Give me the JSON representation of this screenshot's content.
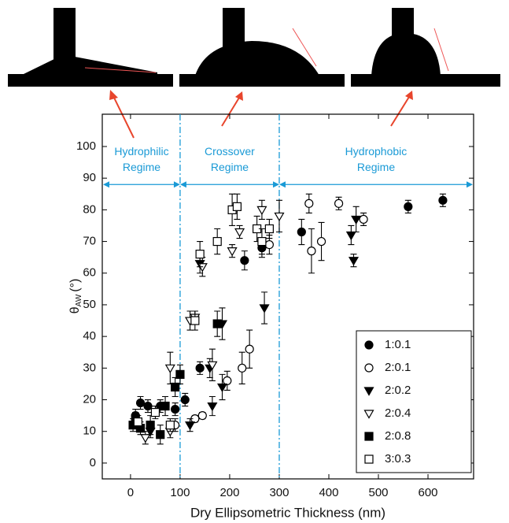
{
  "chart_data": {
    "type": "scatter",
    "xlabel": "Dry Ellipsometric Thickness (nm)",
    "ylabel_symbol": "θ",
    "ylabel_sub": "AW",
    "ylabel_unit": "(°)",
    "xlim": [
      -57,
      692
    ],
    "ylim": [
      -5,
      110.2
    ],
    "xticks": [
      0,
      100,
      200,
      300,
      400,
      500,
      600
    ],
    "yticks": [
      0,
      10,
      20,
      30,
      40,
      50,
      60,
      70,
      80,
      90,
      100
    ],
    "boundaries": [
      100,
      300
    ],
    "region_arrow_y": 88,
    "region_color": "#1a9ad6",
    "regions": [
      {
        "lines": [
          "Hydrophilic",
          "Regime"
        ]
      },
      {
        "lines": [
          "Crossover",
          "Regime"
        ]
      },
      {
        "lines": [
          "Hydrophobic",
          "Regime"
        ]
      }
    ],
    "legend": "lower right",
    "series": [
      {
        "name": "1:0.1",
        "marker": "circle",
        "filled": true,
        "color": "#000000",
        "x": [
          10,
          20,
          35,
          60,
          90,
          110,
          140,
          230,
          265,
          345,
          560,
          630
        ],
        "values": [
          15,
          19,
          18,
          18,
          17,
          20,
          30,
          64,
          68,
          73,
          81,
          83
        ],
        "errors": [
          2,
          2,
          2,
          2,
          2,
          2,
          2,
          3,
          3,
          4,
          2,
          2
        ]
      },
      {
        "name": "2:0.1",
        "marker": "circle",
        "filled": false,
        "color": "#000000",
        "x": [
          90,
          130,
          145,
          195,
          225,
          240,
          280,
          360,
          365,
          385,
          420,
          470
        ],
        "values": [
          12,
          14,
          15,
          26,
          30,
          36,
          69,
          82,
          67,
          70,
          82,
          77
        ],
        "errors": [
          2,
          1,
          1,
          3,
          5,
          6,
          3,
          3,
          7,
          6,
          2,
          2
        ]
      },
      {
        "name": "2:0.2",
        "marker": "triangle-down",
        "filled": true,
        "color": "#000000",
        "x": [
          40,
          120,
          140,
          160,
          165,
          185,
          185,
          270,
          445,
          450,
          455
        ],
        "values": [
          10,
          12,
          63,
          30,
          18,
          24,
          44,
          49,
          72,
          64,
          77
        ],
        "errors": [
          2,
          2,
          3,
          3,
          3,
          4,
          5,
          5,
          3,
          2,
          4
        ]
      },
      {
        "name": "2:0.4",
        "marker": "triangle-down",
        "filled": false,
        "color": "#000000",
        "x": [
          30,
          80,
          80,
          120,
          130,
          145,
          165,
          205,
          220,
          265,
          300
        ],
        "values": [
          8,
          10,
          30,
          45,
          46,
          62,
          31,
          67,
          73,
          80,
          78
        ],
        "errors": [
          2,
          2,
          5,
          3,
          2,
          3,
          5,
          2,
          2,
          3,
          5
        ]
      },
      {
        "name": "2:0.8",
        "marker": "square",
        "filled": true,
        "color": "#000000",
        "x": [
          5,
          10,
          20,
          40,
          60,
          70,
          90,
          100,
          175
        ],
        "values": [
          12,
          14,
          11,
          12,
          9,
          18,
          24,
          28,
          44
        ],
        "errors": [
          2,
          2,
          2,
          3,
          3,
          3,
          3,
          3,
          4
        ]
      },
      {
        "name": "3:0.3",
        "marker": "square",
        "filled": false,
        "color": "#000000",
        "x": [
          15,
          50,
          80,
          130,
          140,
          175,
          205,
          215,
          255,
          265,
          280
        ],
        "values": [
          13,
          16,
          12,
          45,
          66,
          70,
          80,
          81,
          74,
          70,
          74
        ],
        "errors": [
          2,
          2,
          2,
          3,
          4,
          4,
          5,
          4,
          4,
          4,
          3
        ]
      }
    ]
  }
}
